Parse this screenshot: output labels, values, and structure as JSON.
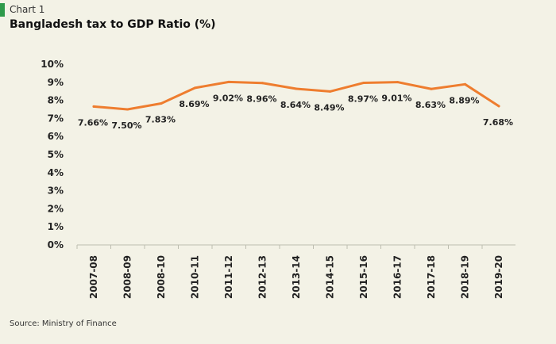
{
  "header": {
    "chart_number": "Chart 1",
    "title": "Bangladesh tax to GDP Ratio (%)"
  },
  "footer": {
    "source": "Source: Ministry of Finance"
  },
  "colors": {
    "background": "#f3f2e6",
    "line": "#ee7d2f",
    "accent": "#2e9a4a",
    "text": "#222222"
  },
  "chart_data": {
    "type": "line",
    "title": "Bangladesh tax to GDP Ratio (%)",
    "xlabel": "",
    "ylabel": "",
    "ylim": [
      0,
      10
    ],
    "yticks": [
      "0%",
      "1%",
      "2%",
      "3%",
      "4%",
      "5%",
      "6%",
      "7%",
      "8%",
      "9%",
      "10%"
    ],
    "grid": false,
    "categories": [
      "2007-08",
      "2008-09",
      "2008-10",
      "2010-11",
      "2011-12",
      "2012-13",
      "2013-14",
      "2014-15",
      "2015-16",
      "2016-17",
      "2017-18",
      "2018-19",
      "2019-20"
    ],
    "series": [
      {
        "values": [
          7.66,
          7.5,
          7.83,
          8.69,
          9.02,
          8.96,
          8.64,
          8.49,
          8.97,
          9.01,
          8.63,
          8.89,
          7.68
        ],
        "labels": [
          "7.66%",
          "7.50%",
          "7.83%",
          "8.69%",
          "9.02%",
          "8.96%",
          "8.64%",
          "8.49%",
          "8.97%",
          "9.01%",
          "8.63%",
          "8.89%",
          "7.68%"
        ]
      }
    ]
  }
}
